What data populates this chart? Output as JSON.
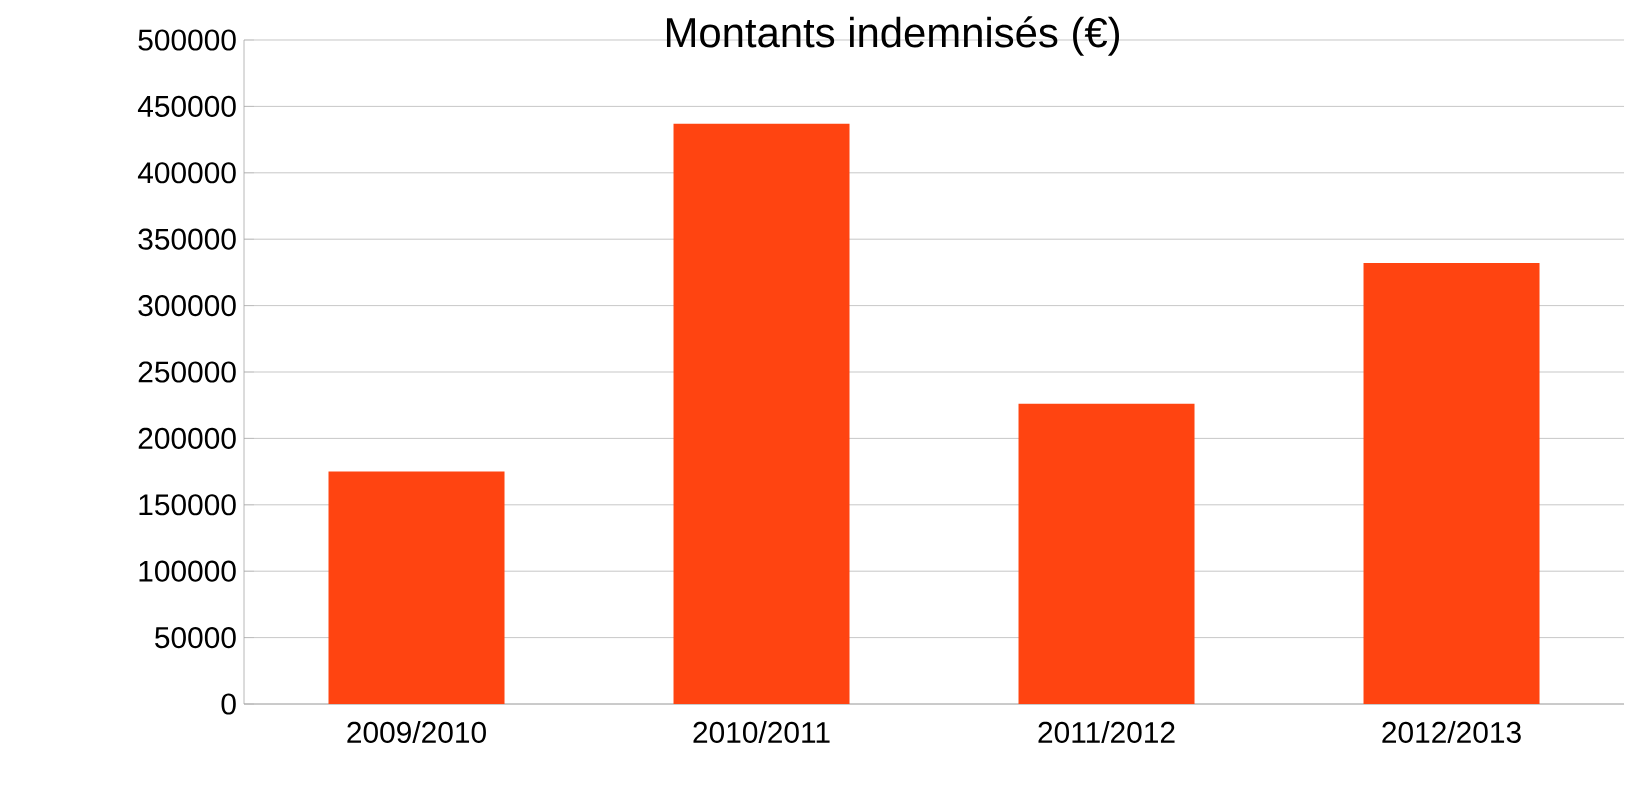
{
  "chart_data": {
    "type": "bar",
    "title": "Montants indemnisés (€)",
    "categories": [
      "2009/2010",
      "2010/2011",
      "2011/2012",
      "2012/2013"
    ],
    "values": [
      175000,
      437000,
      226000,
      332000
    ],
    "color": "#ff4411",
    "ylim": [
      0,
      500000
    ],
    "yticks": [
      0,
      50000,
      100000,
      150000,
      200000,
      250000,
      300000,
      350000,
      400000,
      450000,
      500000
    ],
    "grid": "y"
  }
}
